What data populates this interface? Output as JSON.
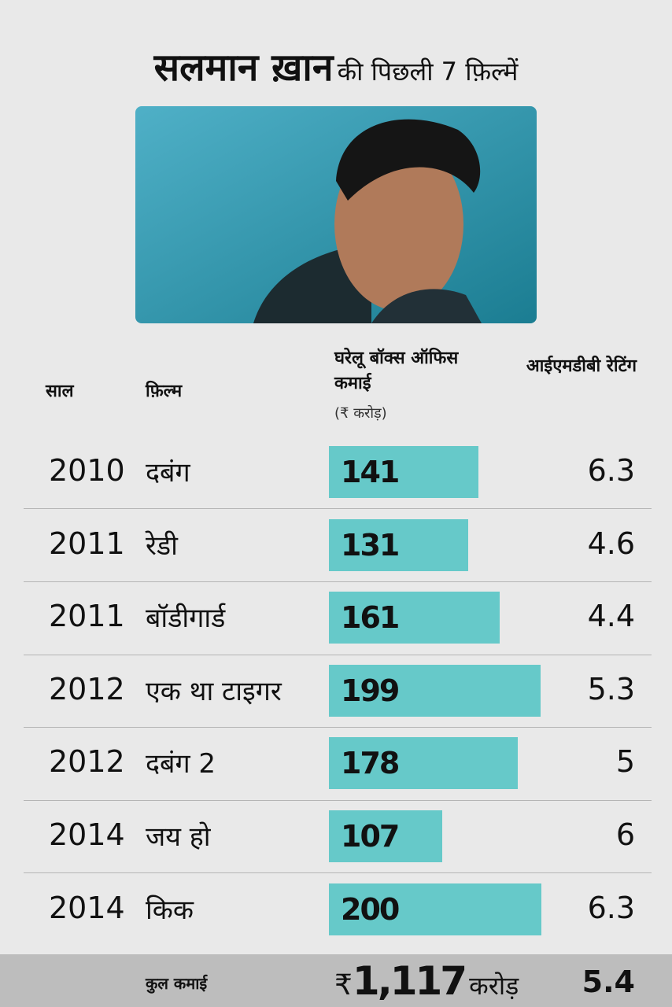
{
  "header": {
    "title_bold": "सलमान ख़ान",
    "title_rest": "की पिछली 7 फ़िल्में"
  },
  "table": {
    "columns": {
      "year": "साल",
      "film": "फ़िल्म",
      "earnings": "घरेलू बॉक्स ऑफिस कमाई",
      "earnings_unit": "(₹ करोड़)",
      "rating": "आईएमडीबी रेटिंग"
    },
    "bar_color": "#66c9c9",
    "rows": [
      {
        "year": 2010,
        "film": "दबंग",
        "earnings": 141,
        "rating": 6.3
      },
      {
        "year": 2011,
        "film": "रेडी",
        "earnings": 131,
        "rating": 4.6
      },
      {
        "year": 2011,
        "film": "बॉडीगार्ड",
        "earnings": 161,
        "rating": 4.4
      },
      {
        "year": 2012,
        "film": "एक था टाइगर",
        "earnings": 199,
        "rating": 5.3
      },
      {
        "year": 2012,
        "film": "दबंग 2",
        "earnings": 178,
        "rating": 5
      },
      {
        "year": 2014,
        "film": "जय हो",
        "earnings": 107,
        "rating": 6
      },
      {
        "year": 2014,
        "film": "किक",
        "earnings": 200,
        "rating": 6.3
      }
    ],
    "total": {
      "label": "कुल कमाई",
      "currency": "₹",
      "earnings": "1,117",
      "unit": "करोड़",
      "rating": 5.4
    }
  }
}
